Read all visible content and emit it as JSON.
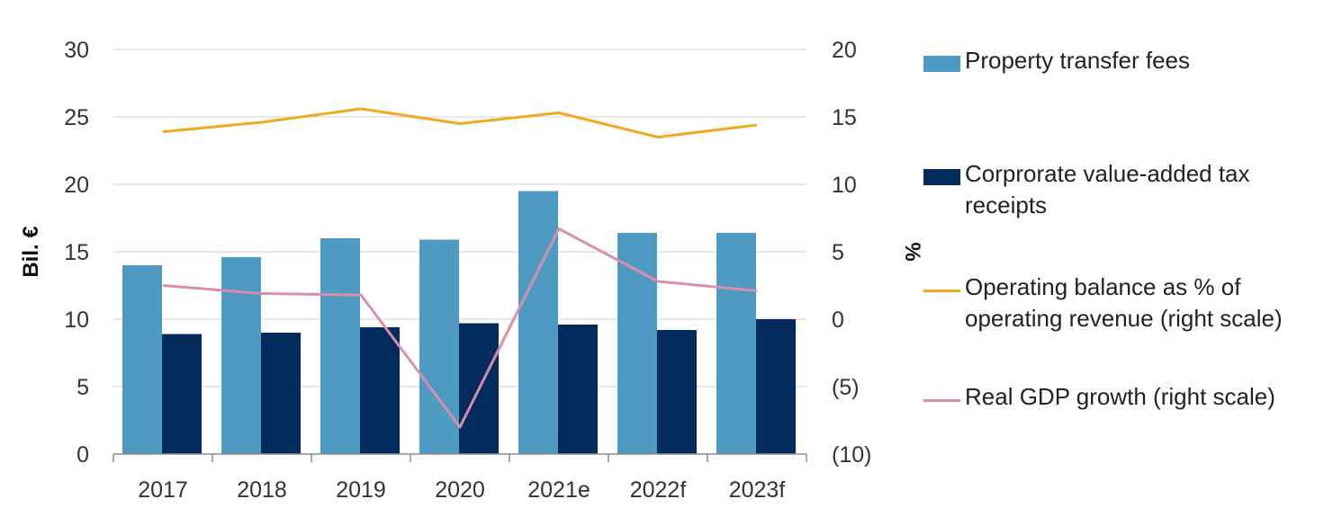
{
  "chart_data": {
    "type": "bar",
    "categories": [
      "2017",
      "2018",
      "2019",
      "2020",
      "2021e",
      "2022f",
      "2023f"
    ],
    "ylabel": "Bil. €",
    "y2label": "%",
    "ylim": [
      0,
      30
    ],
    "y2lim": [
      -10,
      20
    ],
    "yticks": [
      "0",
      "5",
      "10",
      "15",
      "20",
      "25",
      "30"
    ],
    "y2ticks": [
      "(10)",
      "(5)",
      "0",
      "5",
      "10",
      "15",
      "20"
    ],
    "grid": true,
    "legend_position": "right",
    "series": [
      {
        "name": "Property transfer fees",
        "kind": "bar",
        "axis": "left",
        "color": "#4E9AC2",
        "values": [
          14.0,
          14.6,
          16.0,
          15.9,
          19.5,
          16.4,
          16.4
        ]
      },
      {
        "name": "Corprorate value-added tax receipts",
        "kind": "bar",
        "axis": "left",
        "color": "#032B5C",
        "values": [
          8.9,
          9.0,
          9.4,
          9.7,
          9.6,
          9.2,
          10.0
        ]
      },
      {
        "name": "Operating balance as % of operating revenue (right scale)",
        "kind": "line",
        "axis": "right",
        "color": "#F2A920",
        "values": [
          13.9,
          14.6,
          15.6,
          14.5,
          15.3,
          13.5,
          14.4
        ]
      },
      {
        "name": "Real GDP growth (right scale)",
        "kind": "line",
        "axis": "right",
        "color": "#D98EAD",
        "values": [
          2.5,
          1.9,
          1.8,
          -8.0,
          6.7,
          2.8,
          2.1
        ]
      }
    ]
  }
}
